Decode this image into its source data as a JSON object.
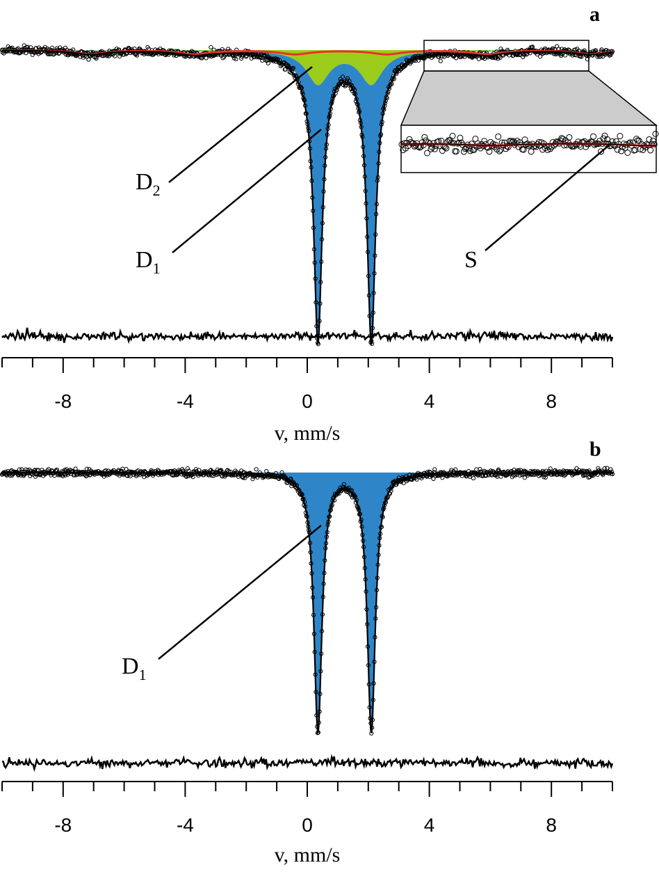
{
  "chart_data": [
    {
      "type": "line",
      "panel": "a",
      "xlabel": "v, mm/s",
      "xlim": [
        -10,
        10
      ],
      "xticks": [
        -8,
        -4,
        0,
        4,
        8
      ],
      "grid": false,
      "series": [
        {
          "name": "D1",
          "kind": "doublet",
          "centers": [
            0.35,
            2.1
          ],
          "depth": 0.77,
          "hwhm": 0.16,
          "color": "#2e86c8"
        },
        {
          "name": "D2",
          "kind": "doublet",
          "centers": [
            0.35,
            2.1
          ],
          "depth": 0.1,
          "hwhm": 0.45,
          "color": "#9ccc1c"
        },
        {
          "name": "S",
          "kind": "sextet",
          "center": 1.1,
          "split": [
            -8.2,
            -4.8,
            -1.5,
            1.5,
            4.8,
            8.2
          ],
          "depth": 0.012,
          "hwhm": 0.6,
          "color": "#e8322c"
        }
      ],
      "labels": [
        {
          "text": "D",
          "sub": "2"
        },
        {
          "text": "D",
          "sub": "1"
        },
        {
          "text": "S",
          "sub": ""
        }
      ],
      "inset": {
        "x_range": [
          3.9,
          9.5
        ]
      }
    },
    {
      "type": "line",
      "panel": "b",
      "xlabel": "v, mm/s",
      "xlim": [
        -10,
        10
      ],
      "xticks": [
        -8,
        -4,
        0,
        4,
        8
      ],
      "grid": false,
      "series": [
        {
          "name": "D1",
          "kind": "doublet",
          "centers": [
            0.35,
            2.1
          ],
          "depth": 0.88,
          "hwhm": 0.16,
          "color": "#2e86c8"
        }
      ],
      "labels": [
        {
          "text": "D",
          "sub": "1"
        }
      ]
    }
  ],
  "colors": {
    "d1": "#2e86c8",
    "d2": "#9ccc1c",
    "sextet": "#e8322c",
    "inset_bg": "#cccccc"
  }
}
